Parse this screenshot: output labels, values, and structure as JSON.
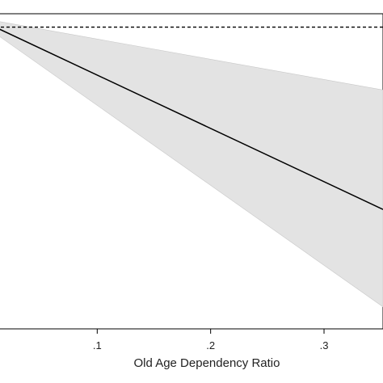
{
  "chart_data": {
    "type": "line",
    "title": "",
    "xlabel": "Old Age Dependency Ratio",
    "ylabel": "",
    "xlim": [
      0.01,
      0.352
    ],
    "ylim": [
      0,
      1
    ],
    "x_ticks": [
      {
        "value": 0.1,
        "label": ".1"
      },
      {
        "value": 0.2,
        "label": ".2"
      },
      {
        "value": 0.3,
        "label": ".3"
      }
    ],
    "grid": false,
    "legend": "none",
    "series": [
      {
        "values": [
          {
            "x": 0.01,
            "y": 0.96
          },
          {
            "x": 0.352,
            "y": 0.38
          }
        ],
        "color": "#000000"
      }
    ],
    "confidence_band": {
      "color": "#e3e3e3",
      "upper": [
        {
          "x": 0.01,
          "y": 0.98
        },
        {
          "x": 0.352,
          "y": 0.76
        }
      ],
      "lower": [
        {
          "x": 0.01,
          "y": 0.94
        },
        {
          "x": 0.352,
          "y": 0.07
        }
      ]
    },
    "reference_line": {
      "y": 0.96,
      "style": "dashed",
      "color": "#000000"
    }
  }
}
